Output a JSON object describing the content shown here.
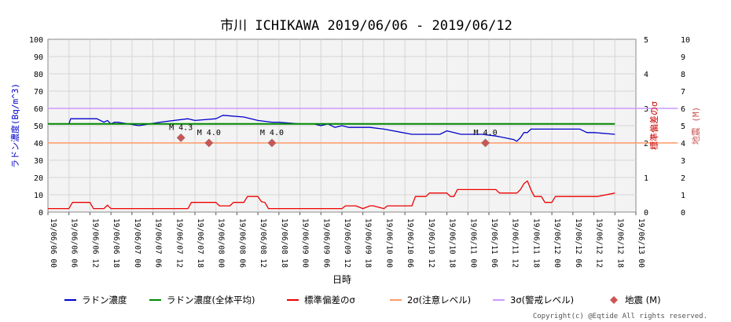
{
  "chart_data": {
    "type": "line",
    "title": "市川 ICHIKAWA 2019/06/06 - 2019/06/12",
    "xlabel": "日時",
    "ylabel_left": "ラドン濃度(Bq/m^3)",
    "ylabel_right_sigma": "標準偏差のσ",
    "ylabel_right_quake": "地震 (M)",
    "ylim_left": [
      0,
      100
    ],
    "ylim_sigma": [
      0,
      5
    ],
    "ylim_quake": [
      0,
      10
    ],
    "yticks_left": [
      "0",
      "10",
      "20",
      "30",
      "40",
      "50",
      "60",
      "70",
      "80",
      "90",
      "100"
    ],
    "yticks_sigma": [
      "0",
      "1",
      "2",
      "3",
      "4",
      "5"
    ],
    "yticks_quake": [
      "0",
      "1",
      "2",
      "3",
      "4",
      "5",
      "6",
      "7",
      "8",
      "9",
      "10"
    ],
    "x_ticks": [
      "19/06/06 00",
      "19/06/06 06",
      "19/06/06 12",
      "19/06/06 18",
      "19/06/07 00",
      "19/06/07 06",
      "19/06/07 12",
      "19/06/07 18",
      "19/06/08 00",
      "19/06/08 06",
      "19/06/08 12",
      "19/06/08 18",
      "19/06/09 00",
      "19/06/09 06",
      "19/06/09 12",
      "19/06/09 18",
      "19/06/10 00",
      "19/06/10 06",
      "19/06/10 12",
      "19/06/10 18",
      "19/06/11 00",
      "19/06/11 06",
      "19/06/11 12",
      "19/06/11 18",
      "19/06/12 00",
      "19/06/12 06",
      "19/06/12 12",
      "19/06/12 18",
      "19/06/13 00"
    ],
    "x_step_hours": 6,
    "grid": true,
    "legend_position": "bottom",
    "series": [
      {
        "name": "ラドン濃度",
        "color": "#0000cc",
        "x_hours": [
          0,
          6,
          6.5,
          14,
          15,
          16,
          17,
          18,
          19,
          20,
          26,
          32,
          40,
          42,
          48,
          50,
          56,
          60,
          64,
          66,
          72,
          76,
          78,
          80,
          82,
          84,
          86,
          88,
          92,
          96,
          104,
          112,
          114,
          118,
          124,
          128,
          133,
          134,
          135,
          136,
          137,
          138,
          139,
          144,
          152,
          154,
          156,
          162
        ],
        "values": [
          51,
          51,
          54,
          54,
          53,
          52,
          53,
          51,
          52,
          52,
          50,
          52,
          54,
          53,
          54,
          56,
          55,
          53,
          52,
          52,
          51,
          51,
          50,
          51,
          49,
          50,
          49,
          49,
          49,
          48,
          45,
          45,
          47,
          45,
          45,
          44,
          42,
          41,
          43,
          46,
          46,
          48,
          48,
          48,
          48,
          46,
          46,
          45
        ]
      },
      {
        "name": "ラドン濃度(全体平均)",
        "color": "#008800",
        "x_hours": [
          0,
          162
        ],
        "values": [
          51,
          51
        ]
      },
      {
        "name": "標準偏差のσ",
        "color": "#ee0000",
        "x_hours": [
          0,
          6,
          7,
          12,
          13,
          16,
          17,
          18,
          19,
          20,
          40,
          41,
          48,
          49,
          52,
          53,
          56,
          57,
          60,
          61,
          62,
          63,
          84,
          85,
          88,
          90,
          92,
          93,
          96,
          97,
          104,
          105,
          108,
          109,
          114,
          115,
          116,
          117,
          119,
          120,
          128,
          129,
          134,
          135,
          136,
          137,
          138,
          139,
          141,
          142,
          144,
          145,
          152,
          153,
          156,
          157,
          162
        ],
        "values": [
          0.1,
          0.1,
          0.28,
          0.28,
          0.1,
          0.1,
          0.2,
          0.1,
          0.1,
          0.1,
          0.1,
          0.28,
          0.28,
          0.18,
          0.18,
          0.28,
          0.28,
          0.45,
          0.45,
          0.3,
          0.28,
          0.1,
          0.1,
          0.18,
          0.18,
          0.1,
          0.18,
          0.18,
          0.1,
          0.18,
          0.18,
          0.45,
          0.45,
          0.55,
          0.55,
          0.45,
          0.45,
          0.65,
          0.65,
          0.65,
          0.65,
          0.55,
          0.55,
          0.65,
          0.82,
          0.9,
          0.65,
          0.45,
          0.45,
          0.28,
          0.28,
          0.45,
          0.45,
          0.45,
          0.45,
          0.45,
          0.55
        ]
      },
      {
        "name": "2σ(注意レベル)",
        "color": "#ff9966",
        "x_hours": [
          0,
          180
        ],
        "values": [
          2,
          2
        ]
      },
      {
        "name": "3σ(警戒レベル)",
        "color": "#cc99ff",
        "x_hours": [
          0,
          180
        ],
        "values": [
          3,
          3
        ]
      }
    ],
    "earthquakes": {
      "name": "地震 (M)",
      "color": "#cc5555",
      "points": [
        {
          "x_hours": 38,
          "magnitude": 4.3,
          "label": "M 4.3"
        },
        {
          "x_hours": 46,
          "magnitude": 4.0,
          "label": "M 4.0"
        },
        {
          "x_hours": 64,
          "magnitude": 4.0,
          "label": "M 4.0"
        },
        {
          "x_hours": 125,
          "magnitude": 4.0,
          "label": "M 4.0"
        }
      ]
    }
  },
  "legend": [
    {
      "label": "ラドン濃度",
      "kind": "line",
      "color": "#0000cc"
    },
    {
      "label": "ラドン濃度(全体平均)",
      "kind": "line",
      "color": "#008800"
    },
    {
      "label": "標準偏差のσ",
      "kind": "line",
      "color": "#ee0000"
    },
    {
      "label": "2σ(注意レベル)",
      "kind": "line",
      "color": "#ff9966"
    },
    {
      "label": "3σ(警戒レベル)",
      "kind": "line",
      "color": "#cc99ff"
    },
    {
      "label": "地震 (M)",
      "kind": "marker",
      "color": "#cc5555"
    }
  ],
  "copyright": "Copyright(c) @Eqtide All rights reserved."
}
